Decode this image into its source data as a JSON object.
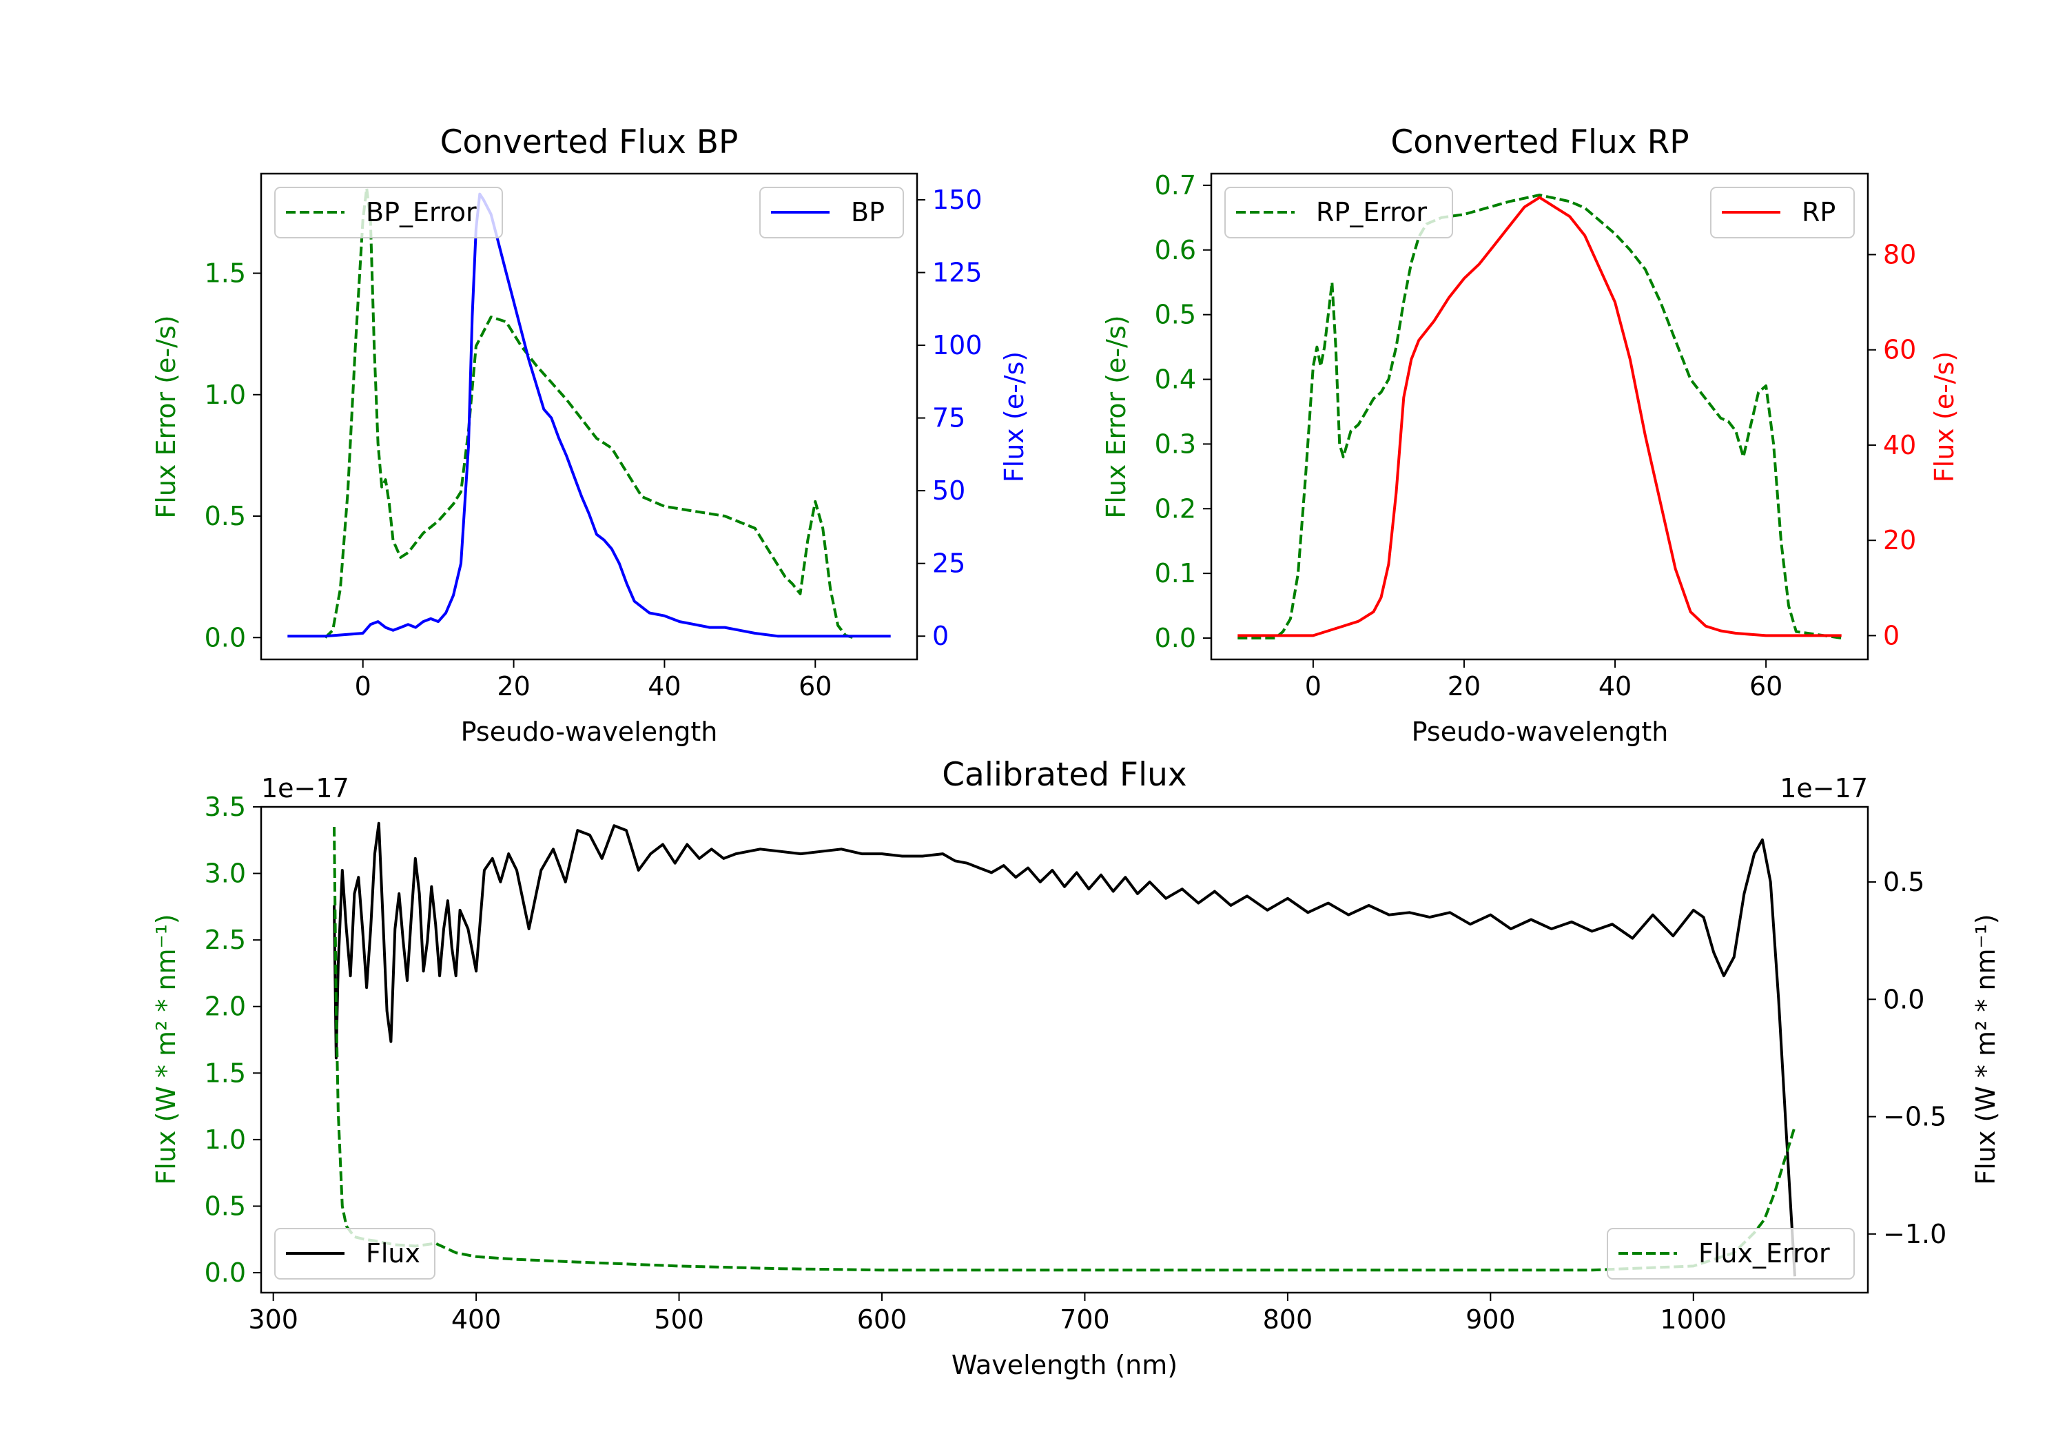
{
  "chart_data": [
    {
      "type": "line",
      "title": "Converted Flux BP",
      "xlabel": "Pseudo-wavelength",
      "ylabel_left": "Flux Error (e-/s)",
      "ylabel_right": "Flux (e-/s)",
      "xlim": [
        -13.5,
        73.5
      ],
      "ylim_left": [
        -0.09,
        1.91
      ],
      "ylim_right": [
        -8,
        159
      ],
      "x_ticks": [
        0,
        20,
        40,
        60
      ],
      "y_left_ticks": [
        "0.0",
        "0.5",
        "1.0",
        "1.5"
      ],
      "y_left_tick_values": [
        0,
        0.5,
        1.0,
        1.5
      ],
      "y_right_ticks": [
        "0",
        "25",
        "50",
        "75",
        "100",
        "125",
        "150"
      ],
      "y_right_tick_values": [
        0,
        25,
        50,
        75,
        100,
        125,
        150
      ],
      "legend_left": "BP_Error",
      "legend_right": "BP",
      "series": [
        {
          "name": "BP_Error",
          "axis": "left",
          "color": "#008000",
          "style": "dashed",
          "x": [
            -5,
            -4,
            -3,
            -2,
            -1,
            0,
            0.5,
            1,
            1.5,
            2,
            2.5,
            3,
            3.5,
            4,
            5,
            6,
            8,
            10,
            12,
            13,
            14,
            15,
            17,
            19,
            21,
            23,
            25,
            27,
            29,
            31,
            33,
            35,
            37,
            40,
            44,
            48,
            52,
            54,
            56,
            57,
            58,
            59,
            60,
            61,
            62,
            63,
            64,
            65
          ],
          "y": [
            0.0,
            0.03,
            0.2,
            0.6,
            1.2,
            1.72,
            1.85,
            1.72,
            1.2,
            0.8,
            0.62,
            0.65,
            0.55,
            0.4,
            0.33,
            0.35,
            0.43,
            0.48,
            0.55,
            0.6,
            0.85,
            1.2,
            1.32,
            1.3,
            1.2,
            1.12,
            1.05,
            0.98,
            0.9,
            0.82,
            0.78,
            0.68,
            0.58,
            0.54,
            0.52,
            0.5,
            0.45,
            0.35,
            0.25,
            0.22,
            0.18,
            0.4,
            0.56,
            0.45,
            0.2,
            0.05,
            0.01,
            0.0
          ]
        },
        {
          "name": "BP",
          "axis": "right",
          "color": "#0000ff",
          "style": "solid",
          "x": [
            -10,
            -5,
            0,
            1,
            2,
            3,
            4,
            5,
            6,
            7,
            8,
            9,
            10,
            11,
            12,
            13,
            14,
            14.5,
            15,
            15.5,
            16,
            17,
            18,
            19,
            20,
            22,
            24,
            25,
            26,
            27,
            28,
            29,
            30,
            31,
            32,
            33,
            34,
            35,
            36,
            38,
            40,
            42,
            44,
            46,
            48,
            50,
            52,
            55,
            60,
            65,
            70
          ],
          "y": [
            0,
            0,
            1,
            4,
            5,
            3,
            2,
            3,
            4,
            3,
            5,
            6,
            5,
            8,
            14,
            25,
            65,
            110,
            140,
            152,
            150,
            145,
            135,
            125,
            115,
            95,
            78,
            75,
            68,
            62,
            55,
            48,
            42,
            35,
            33,
            30,
            25,
            18,
            12,
            8,
            7,
            5,
            4,
            3,
            3,
            2,
            1,
            0,
            0,
            0,
            0
          ]
        }
      ]
    },
    {
      "type": "line",
      "title": "Converted Flux RP",
      "xlabel": "Pseudo-wavelength",
      "ylabel_left": "Flux Error (e-/s)",
      "ylabel_right": "Flux (e-/s)",
      "xlim": [
        -13.5,
        73.5
      ],
      "ylim_left": [
        -0.033,
        0.718
      ],
      "ylim_right": [
        -5,
        97
      ],
      "x_ticks": [
        0,
        20,
        40,
        60
      ],
      "y_left_ticks": [
        "0.0",
        "0.1",
        "0.2",
        "0.3",
        "0.4",
        "0.5",
        "0.6",
        "0.7"
      ],
      "y_left_tick_values": [
        0,
        0.1,
        0.2,
        0.3,
        0.4,
        0.5,
        0.6,
        0.7
      ],
      "y_right_ticks": [
        "0",
        "20",
        "40",
        "60",
        "80"
      ],
      "y_right_tick_values": [
        0,
        20,
        40,
        60,
        80
      ],
      "legend_left": "RP_Error",
      "legend_right": "RP",
      "series": [
        {
          "name": "RP_Error",
          "axis": "left",
          "color": "#008000",
          "style": "dashed",
          "x": [
            -10,
            -5,
            -4,
            -3,
            -2,
            -1,
            0,
            0.5,
            1,
            1.5,
            2,
            2.5,
            3,
            3.5,
            4,
            5,
            6,
            7,
            8,
            9,
            10,
            11,
            12,
            13,
            14,
            15,
            17,
            20,
            23,
            26,
            28,
            30,
            32,
            34,
            36,
            38,
            40,
            42,
            44,
            46,
            48,
            50,
            52,
            54,
            55,
            56,
            57,
            58,
            59,
            60,
            61,
            62,
            63,
            64,
            70
          ],
          "y": [
            0.0,
            0.0,
            0.01,
            0.03,
            0.1,
            0.25,
            0.42,
            0.45,
            0.42,
            0.45,
            0.5,
            0.55,
            0.45,
            0.3,
            0.28,
            0.32,
            0.33,
            0.35,
            0.37,
            0.38,
            0.4,
            0.45,
            0.52,
            0.58,
            0.62,
            0.64,
            0.65,
            0.655,
            0.665,
            0.675,
            0.68,
            0.685,
            0.68,
            0.675,
            0.665,
            0.645,
            0.625,
            0.6,
            0.57,
            0.52,
            0.46,
            0.4,
            0.37,
            0.34,
            0.335,
            0.32,
            0.28,
            0.33,
            0.38,
            0.39,
            0.3,
            0.15,
            0.05,
            0.01,
            0.0
          ]
        },
        {
          "name": "RP",
          "axis": "right",
          "color": "#ff0000",
          "style": "solid",
          "x": [
            -10,
            -5,
            0,
            2,
            4,
            6,
            8,
            9,
            10,
            11,
            12,
            13,
            14,
            16,
            18,
            20,
            22,
            24,
            26,
            28,
            30,
            32,
            34,
            36,
            38,
            40,
            42,
            44,
            46,
            48,
            50,
            52,
            54,
            56,
            60,
            65,
            70
          ],
          "y": [
            0,
            0,
            0,
            1,
            2,
            3,
            5,
            8,
            15,
            30,
            50,
            58,
            62,
            66,
            71,
            75,
            78,
            82,
            86,
            90,
            92,
            90,
            88,
            84,
            77,
            70,
            58,
            42,
            28,
            14,
            5,
            2,
            1,
            0.5,
            0,
            0,
            0
          ]
        }
      ]
    },
    {
      "type": "line",
      "title": "Calibrated Flux",
      "xlabel": "Wavelength (nm)",
      "ylabel_left": "Flux (W * m² * nm⁻¹)",
      "ylabel_right": "Flux (W * m² * nm⁻¹)",
      "offset_left": "1e−17",
      "offset_right": "1e−17",
      "xlim": [
        294,
        1086
      ],
      "ylim_left": [
        -0.15,
        3.5
      ],
      "ylim_right": [
        -1.25,
        0.82
      ],
      "x_ticks": [
        300,
        400,
        500,
        600,
        700,
        800,
        900,
        1000
      ],
      "y_left_ticks": [
        "0.0",
        "0.5",
        "1.0",
        "1.5",
        "2.0",
        "2.5",
        "3.0",
        "3.5"
      ],
      "y_left_tick_values": [
        0,
        0.5,
        1.0,
        1.5,
        2.0,
        2.5,
        3.0,
        3.5
      ],
      "y_right_ticks": [
        "−1.0",
        "−0.5",
        "0.0",
        "0.5"
      ],
      "y_right_tick_values": [
        -1.0,
        -0.5,
        0.0,
        0.5
      ],
      "legend_left": "Flux",
      "legend_right": "Flux_Error",
      "series": [
        {
          "name": "Flux",
          "axis": "right",
          "color": "#000000",
          "style": "solid",
          "x": [
            330,
            331,
            332,
            334,
            336,
            338,
            340,
            342,
            344,
            346,
            348,
            350,
            352,
            354,
            356,
            358,
            360,
            362,
            364,
            366,
            368,
            370,
            372,
            374,
            376,
            378,
            380,
            382,
            384,
            386,
            388,
            390,
            392,
            396,
            400,
            404,
            408,
            412,
            416,
            420,
            426,
            432,
            438,
            444,
            450,
            456,
            462,
            468,
            474,
            480,
            486,
            492,
            498,
            504,
            510,
            516,
            522,
            528,
            534,
            540,
            550,
            560,
            570,
            580,
            590,
            600,
            610,
            620,
            630,
            636,
            642,
            648,
            654,
            660,
            666,
            672,
            678,
            684,
            690,
            696,
            702,
            708,
            714,
            720,
            726,
            732,
            740,
            748,
            756,
            764,
            772,
            780,
            790,
            800,
            810,
            820,
            830,
            840,
            850,
            860,
            870,
            880,
            890,
            900,
            910,
            920,
            930,
            940,
            950,
            960,
            970,
            980,
            990,
            1000,
            1005,
            1010,
            1015,
            1020,
            1025,
            1030,
            1034,
            1038,
            1042,
            1046,
            1050
          ],
          "y": [
            0.4,
            -0.25,
            0.15,
            0.55,
            0.3,
            0.1,
            0.45,
            0.52,
            0.3,
            0.05,
            0.3,
            0.62,
            0.75,
            0.35,
            -0.05,
            -0.18,
            0.3,
            0.45,
            0.25,
            0.08,
            0.35,
            0.6,
            0.45,
            0.12,
            0.25,
            0.48,
            0.32,
            0.1,
            0.3,
            0.42,
            0.22,
            0.1,
            0.38,
            0.3,
            0.12,
            0.55,
            0.6,
            0.5,
            0.62,
            0.55,
            0.3,
            0.55,
            0.64,
            0.5,
            0.72,
            0.7,
            0.6,
            0.74,
            0.72,
            0.55,
            0.62,
            0.66,
            0.58,
            0.66,
            0.6,
            0.64,
            0.6,
            0.62,
            0.63,
            0.64,
            0.63,
            0.62,
            0.63,
            0.64,
            0.62,
            0.62,
            0.61,
            0.61,
            0.62,
            0.59,
            0.58,
            0.56,
            0.54,
            0.57,
            0.52,
            0.56,
            0.5,
            0.55,
            0.48,
            0.54,
            0.47,
            0.53,
            0.46,
            0.52,
            0.45,
            0.5,
            0.43,
            0.47,
            0.41,
            0.46,
            0.4,
            0.44,
            0.38,
            0.43,
            0.37,
            0.41,
            0.36,
            0.4,
            0.36,
            0.37,
            0.35,
            0.37,
            0.32,
            0.36,
            0.3,
            0.34,
            0.3,
            0.33,
            0.29,
            0.32,
            0.26,
            0.36,
            0.27,
            0.38,
            0.35,
            0.2,
            0.1,
            0.18,
            0.45,
            0.62,
            0.68,
            0.5,
            0.0,
            -0.6,
            -1.18
          ]
        },
        {
          "name": "Flux_Error",
          "axis": "left",
          "color": "#008000",
          "style": "dashed",
          "x": [
            330,
            331,
            332,
            334,
            336,
            340,
            345,
            350,
            360,
            370,
            380,
            390,
            400,
            420,
            450,
            500,
            550,
            600,
            650,
            700,
            750,
            800,
            850,
            900,
            950,
            1000,
            1020,
            1030,
            1035,
            1040,
            1045,
            1050
          ],
          "y": [
            3.35,
            2.0,
            1.2,
            0.5,
            0.35,
            0.27,
            0.25,
            0.24,
            0.21,
            0.2,
            0.22,
            0.15,
            0.12,
            0.1,
            0.08,
            0.05,
            0.03,
            0.02,
            0.02,
            0.02,
            0.02,
            0.02,
            0.02,
            0.02,
            0.02,
            0.05,
            0.15,
            0.3,
            0.4,
            0.6,
            0.85,
            1.1
          ]
        }
      ]
    }
  ]
}
